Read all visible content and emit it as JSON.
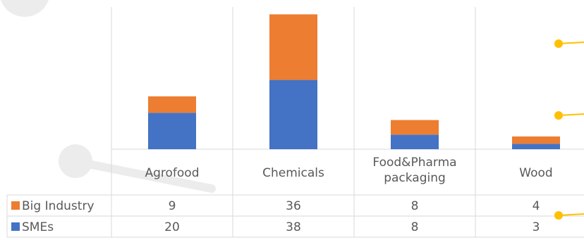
{
  "chart_data": {
    "type": "bar",
    "stacked": true,
    "categories": [
      "Agrofood",
      "Chemicals",
      "Food&Pharma packaging",
      "Wood"
    ],
    "series": [
      {
        "name": "SMEs",
        "values": [
          20,
          38,
          8,
          3
        ],
        "color": "#4472C4"
      },
      {
        "name": "Big Industry",
        "values": [
          9,
          36,
          8,
          4
        ],
        "color": "#ED7D31"
      }
    ],
    "data_table": true,
    "legend": "data-table-left",
    "grid": false,
    "ylim": [
      0,
      78
    ]
  },
  "decor": {
    "grid_line_color": "#D9D9D9",
    "connector_color": "#FFC000",
    "circle_color": "#E7E6E6"
  }
}
